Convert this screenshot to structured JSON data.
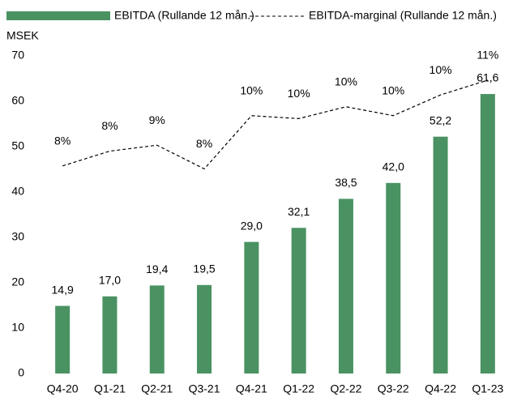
{
  "chart_data": {
    "type": "bar_line",
    "y_label": "MSEK",
    "categories": [
      "Q4-20",
      "Q1-21",
      "Q2-21",
      "Q3-21",
      "Q4-21",
      "Q1-22",
      "Q2-22",
      "Q3-22",
      "Q4-22",
      "Q1-23"
    ],
    "series": [
      {
        "name": "EBITDA (Rullande 12 mån.)",
        "type": "bar",
        "color": "#4a9262",
        "values": [
          14.9,
          17.0,
          19.4,
          19.5,
          29.0,
          32.1,
          38.5,
          42.0,
          52.2,
          61.6
        ],
        "value_labels": [
          "14,9",
          "17,0",
          "19,4",
          "19,5",
          "29,0",
          "32,1",
          "38,5",
          "42,0",
          "52,2",
          "61,6"
        ]
      },
      {
        "name": "EBITDA-marginal (Rullande 12 mån.)",
        "type": "line",
        "color": "#000000",
        "axis": "y2",
        "values": [
          7.9,
          8.4,
          8.6,
          7.8,
          9.6,
          9.5,
          9.9,
          9.6,
          10.3,
          10.8
        ],
        "value_labels": [
          "8%",
          "8%",
          "9%",
          "8%",
          "10%",
          "10%",
          "10%",
          "10%",
          "10%",
          "11%"
        ]
      }
    ],
    "ylim": [
      0,
      70
    ],
    "yticks": [
      0,
      10,
      20,
      30,
      40,
      50,
      60,
      70
    ],
    "y2lim": [
      0.88,
      11.62
    ],
    "legend": "top"
  }
}
